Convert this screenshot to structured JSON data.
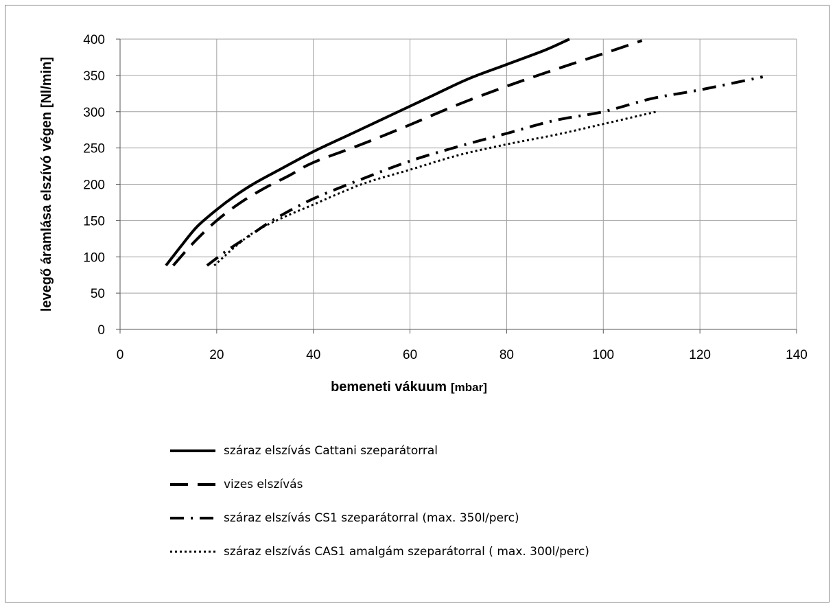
{
  "chart_data": {
    "type": "line",
    "title": "",
    "xlabel": "bemeneti vákuum",
    "xlabel_unit": "[mbar]",
    "ylabel": "levegő áramlása elszívó végen [Nl/min]",
    "xlim": [
      0,
      140
    ],
    "ylim": [
      0,
      400
    ],
    "x_ticks": [
      "0",
      "20",
      "40",
      "60",
      "80",
      "100",
      "120",
      "140"
    ],
    "y_ticks": [
      "0",
      "50",
      "100",
      "150",
      "200",
      "250",
      "300",
      "350",
      "400"
    ],
    "grid": true,
    "legend_position": "bottom",
    "series": [
      {
        "name": "száraz elszívás Cattani szeparátorral",
        "style": "solid",
        "x": [
          9.5,
          13,
          16,
          20,
          24,
          28,
          33,
          40,
          48,
          56,
          64,
          72,
          80,
          88,
          93
        ],
        "y": [
          88,
          118,
          142,
          165,
          185,
          202,
          220,
          245,
          270,
          295,
          320,
          345,
          365,
          385,
          400
        ]
      },
      {
        "name": "vizes elszívás",
        "style": "dashed",
        "x": [
          11,
          15,
          20,
          25,
          30,
          35,
          40,
          50,
          60,
          70,
          80,
          90,
          100,
          108
        ],
        "y": [
          88,
          118,
          150,
          175,
          195,
          212,
          230,
          255,
          282,
          310,
          335,
          358,
          380,
          398
        ]
      },
      {
        "name": "száraz elszívás CS1 szeparátorral (max. 350l/perc)",
        "style": "dashdot",
        "x": [
          18,
          22,
          27,
          32,
          40,
          50,
          60,
          70,
          80,
          90,
          100,
          110,
          120,
          133
        ],
        "y": [
          88,
          108,
          130,
          152,
          180,
          207,
          232,
          252,
          270,
          288,
          300,
          318,
          330,
          348
        ]
      },
      {
        "name": "száraz elszívás CAS1 amalgám szeparátorral ( max. 300l/perc)",
        "style": "dotted",
        "x": [
          19.5,
          24,
          28,
          33,
          40,
          50,
          60,
          70,
          80,
          90,
          100,
          111
        ],
        "y": [
          88,
          115,
          135,
          152,
          172,
          200,
          220,
          240,
          255,
          268,
          283,
          300
        ]
      }
    ]
  }
}
